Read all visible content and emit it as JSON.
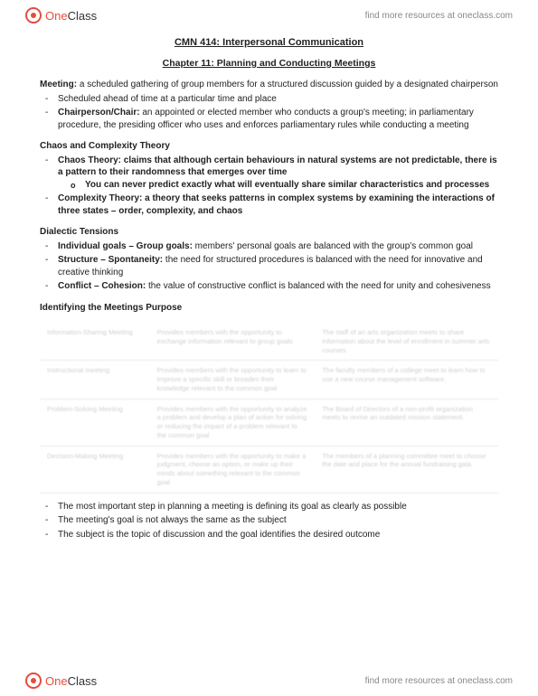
{
  "brand": {
    "one": "One",
    "class": "Class"
  },
  "header_link": "find more resources at oneclass.com",
  "footer_link": "find more resources at oneclass.com",
  "course_title": "CMN 414: Interpersonal Communication",
  "chapter_title": "Chapter 11: Planning and Conducting Meetings",
  "meeting": {
    "term": "Meeting:",
    "def": " a scheduled gathering of group members for a structured discussion guided by a designated chairperson",
    "b1": "Scheduled ahead of time at a particular time and place",
    "b2_term": "Chairperson/Chair:",
    "b2_def": " an appointed or elected member who conducts a group's meeting; in parliamentary procedure, the presiding officer who uses and enforces parliamentary rules while conducting a meeting"
  },
  "chaos": {
    "heading": "Chaos and Complexity Theory",
    "b1_term": "Chaos Theory:",
    "b1_def": " claims that although certain behaviours in natural systems are not predictable, there is a pattern to their randomness that emerges over time",
    "b1_sub": "You can never predict exactly what will eventually share similar characteristics and processes",
    "b2_term": "Complexity Theory:",
    "b2_def": " a theory that seeks patterns in complex systems by examining the interactions of three states – order, complexity, and chaos"
  },
  "dialectic": {
    "heading": "Dialectic Tensions",
    "b1_term": "Individual goals – Group goals:",
    "b1_def": " members' personal goals are balanced with the group's common goal",
    "b2_term": "Structure – Spontaneity:",
    "b2_def": " the need for structured procedures is balanced with the need for innovative and creative thinking",
    "b3_term": "Conflict – Cohesion:",
    "b3_def": " the value of constructive conflict is balanced with the need for unity and cohesiveness"
  },
  "purpose": {
    "heading": "Identifying the Meetings Purpose",
    "rows": [
      {
        "c1": "Information-Sharing Meeting",
        "c2": "Provides members with the opportunity to exchange information relevant to group goals",
        "c3": "The staff of an arts organization meets to share information about the level of enrollment in summer arts courses."
      },
      {
        "c1": "Instructional meeting",
        "c2": "Provides members with the opportunity to learn to improve a specific skill or broaden their knowledge relevant to the common goal",
        "c3": "The faculty members of a college meet to learn how to use a new course management software."
      },
      {
        "c1": "Problem-Solving Meeting",
        "c2": "Provides members with the opportunity to analyze a problem and develop a plan of action for solving or reducing the impact of a problem relevant to the common goal",
        "c3": "The Board of Directors of a non-profit organization meets to revise an outdated mission statement."
      },
      {
        "c1": "Decision-Making Meeting",
        "c2": "Provides members with the opportunity to make a judgment, choose an option, or make up their minds about something relevant to the common goal",
        "c3": "The members of a planning committee meet to choose the date and place for the annual fundraising gala."
      }
    ],
    "after": [
      "The most important step in planning a meeting is defining its goal as clearly as possible",
      "The meeting's goal is not always the same as the subject",
      "The subject is the topic of discussion and the goal identifies the desired outcome"
    ]
  }
}
